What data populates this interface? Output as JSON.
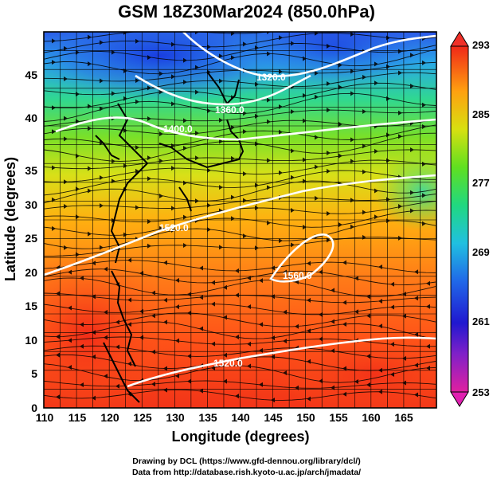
{
  "title": "GSM 18Z30Mar2024 (850.0hPa)",
  "x_axis": {
    "label": "Longitude (degrees)",
    "ticks": [
      "110",
      "115",
      "120",
      "125",
      "130",
      "135",
      "140",
      "145",
      "150",
      "155",
      "160",
      "165"
    ]
  },
  "y_axis": {
    "label": "Latitude  (degrees)",
    "ticks": [
      "0",
      "5",
      "10",
      "15",
      "20",
      "25",
      "30",
      "35",
      "40",
      "45"
    ]
  },
  "colorbar": {
    "ticks": [
      "253",
      "261",
      "269",
      "277",
      "285",
      "293"
    ],
    "colors": [
      "#d02080",
      "#3010c8",
      "#2060e8",
      "#20b8e0",
      "#20d880",
      "#70e020",
      "#d0e010",
      "#ffb000",
      "#ff7020",
      "#f03020"
    ]
  },
  "contour_labels": [
    "1320.0",
    "1360.0",
    "1400.0",
    "1520.0",
    "1560.0",
    "1520.0"
  ],
  "credits": {
    "line1": "Drawing by DCL (https://www.gfd-dennou.org/library/dcl/)",
    "line2": "Data from http://database.rish.kyoto-u.ac.jp/arch/jmadata/"
  }
}
